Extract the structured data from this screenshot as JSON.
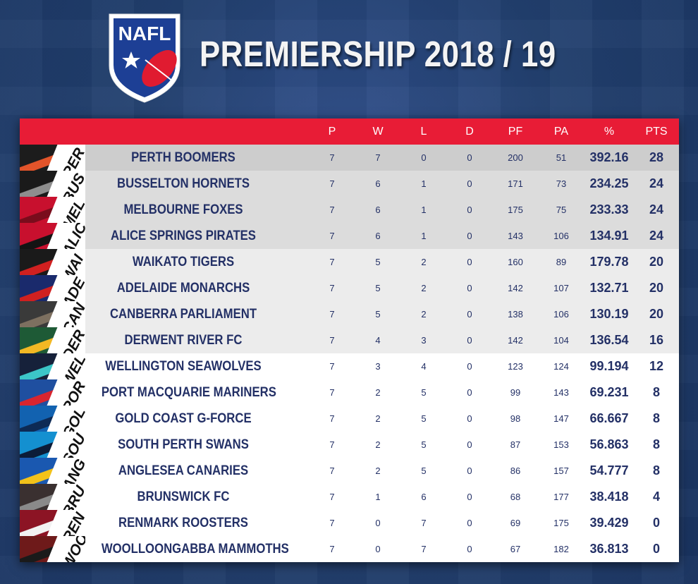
{
  "header": {
    "logo_text": "NAFL",
    "title": "PREMIERSHIP 2018 / 19"
  },
  "table": {
    "columns": [
      "P",
      "W",
      "L",
      "D",
      "PF",
      "PA",
      "%",
      "PTS"
    ],
    "rows": [
      {
        "abbr": "PER",
        "team": "PERTH BOOMERS",
        "p": "7",
        "w": "7",
        "l": "0",
        "d": "0",
        "pf": "200",
        "pa": "51",
        "pct": "392.16",
        "pts": "28",
        "band": "#cdcdcd",
        "c1": "#1c1c1c",
        "c2": "#e2542a"
      },
      {
        "abbr": "BUS",
        "team": "BUSSELTON HORNETS",
        "p": "7",
        "w": "6",
        "l": "1",
        "d": "0",
        "pf": "171",
        "pa": "73",
        "pct": "234.25",
        "pts": "24",
        "band": "#dcdcdc",
        "c1": "#1a1a1a",
        "c2": "#8e8e8e"
      },
      {
        "abbr": "MEL",
        "team": "MELBOURNE FOXES",
        "p": "7",
        "w": "6",
        "l": "1",
        "d": "0",
        "pf": "175",
        "pa": "75",
        "pct": "233.33",
        "pts": "24",
        "band": "#dcdcdc",
        "c1": "#c8102e",
        "c2": "#7a0c1c"
      },
      {
        "abbr": "ALIC",
        "team": "ALICE SPRINGS PIRATES",
        "p": "7",
        "w": "6",
        "l": "1",
        "d": "0",
        "pf": "143",
        "pa": "106",
        "pct": "134.91",
        "pts": "24",
        "band": "#dcdcdc",
        "c1": "#c8102e",
        "c2": "#141414"
      },
      {
        "abbr": "WAI",
        "team": "WAIKATO TIGERS",
        "p": "7",
        "w": "5",
        "l": "2",
        "d": "0",
        "pf": "160",
        "pa": "89",
        "pct": "179.78",
        "pts": "20",
        "band": "#ececec",
        "c1": "#1a1a1a",
        "c2": "#d02020"
      },
      {
        "abbr": "ADE",
        "team": "ADELAIDE MONARCHS",
        "p": "7",
        "w": "5",
        "l": "2",
        "d": "0",
        "pf": "142",
        "pa": "107",
        "pct": "132.71",
        "pts": "20",
        "band": "#ececec",
        "c1": "#1a2a6c",
        "c2": "#d02020"
      },
      {
        "abbr": "CAN",
        "team": "CANBERRA PARLIAMENT",
        "p": "7",
        "w": "5",
        "l": "2",
        "d": "0",
        "pf": "138",
        "pa": "106",
        "pct": "130.19",
        "pts": "20",
        "band": "#ececec",
        "c1": "#3a3a3a",
        "c2": "#7d7060"
      },
      {
        "abbr": "DER",
        "team": "DERWENT RIVER FC",
        "p": "7",
        "w": "4",
        "l": "3",
        "d": "0",
        "pf": "142",
        "pa": "104",
        "pct": "136.54",
        "pts": "16",
        "band": "#ececec",
        "c1": "#1e5a36",
        "c2": "#f2b824"
      },
      {
        "abbr": "WEL",
        "team": "WELLINGTON SEAWOLVES",
        "p": "7",
        "w": "3",
        "l": "4",
        "d": "0",
        "pf": "123",
        "pa": "124",
        "pct": "99.194",
        "pts": "12",
        "band": "#ffffff",
        "c1": "#16213a",
        "c2": "#3cc6c8"
      },
      {
        "abbr": "POR",
        "team": "PORT MACQUARIE MARINERS",
        "p": "7",
        "w": "2",
        "l": "5",
        "d": "0",
        "pf": "99",
        "pa": "143",
        "pct": "69.231",
        "pts": "8",
        "band": "#ffffff",
        "c1": "#1f4fa0",
        "c2": "#d8252f"
      },
      {
        "abbr": "GOL",
        "team": "GOLD COAST G-FORCE",
        "p": "7",
        "w": "2",
        "l": "5",
        "d": "0",
        "pf": "98",
        "pa": "147",
        "pct": "66.667",
        "pts": "8",
        "band": "#ffffff",
        "c1": "#1262b0",
        "c2": "#0d2a55"
      },
      {
        "abbr": "SOU",
        "team": "SOUTH PERTH SWANS",
        "p": "7",
        "w": "2",
        "l": "5",
        "d": "0",
        "pf": "87",
        "pa": "153",
        "pct": "56.863",
        "pts": "8",
        "band": "#ffffff",
        "c1": "#1490d0",
        "c2": "#0c1c38"
      },
      {
        "abbr": "ANG",
        "team": "ANGLESEA CANARIES",
        "p": "7",
        "w": "2",
        "l": "5",
        "d": "0",
        "pf": "86",
        "pa": "157",
        "pct": "54.777",
        "pts": "8",
        "band": "#ffffff",
        "c1": "#1a58b0",
        "c2": "#f2c21a"
      },
      {
        "abbr": "BRU",
        "team": "BRUNSWICK FC",
        "p": "7",
        "w": "1",
        "l": "6",
        "d": "0",
        "pf": "68",
        "pa": "177",
        "pct": "38.418",
        "pts": "4",
        "band": "#ffffff",
        "c1": "#3a3030",
        "c2": "#8a8a8a"
      },
      {
        "abbr": "REN",
        "team": "RENMARK ROOSTERS",
        "p": "7",
        "w": "0",
        "l": "7",
        "d": "0",
        "pf": "69",
        "pa": "175",
        "pct": "39.429",
        "pts": "0",
        "band": "#ffffff",
        "c1": "#8c1424",
        "c2": "#f2f2f2"
      },
      {
        "abbr": "WOO",
        "team": "WOOLLOONGABBA MAMMOTHS",
        "p": "7",
        "w": "0",
        "l": "7",
        "d": "0",
        "pf": "67",
        "pa": "182",
        "pct": "36.813",
        "pts": "0",
        "band": "#ffffff",
        "c1": "#6e1a1a",
        "c2": "#1a1a1a"
      }
    ]
  },
  "colors": {
    "header_red": "#e81c36",
    "text_navy": "#233066",
    "background_blue": "#22406f"
  }
}
